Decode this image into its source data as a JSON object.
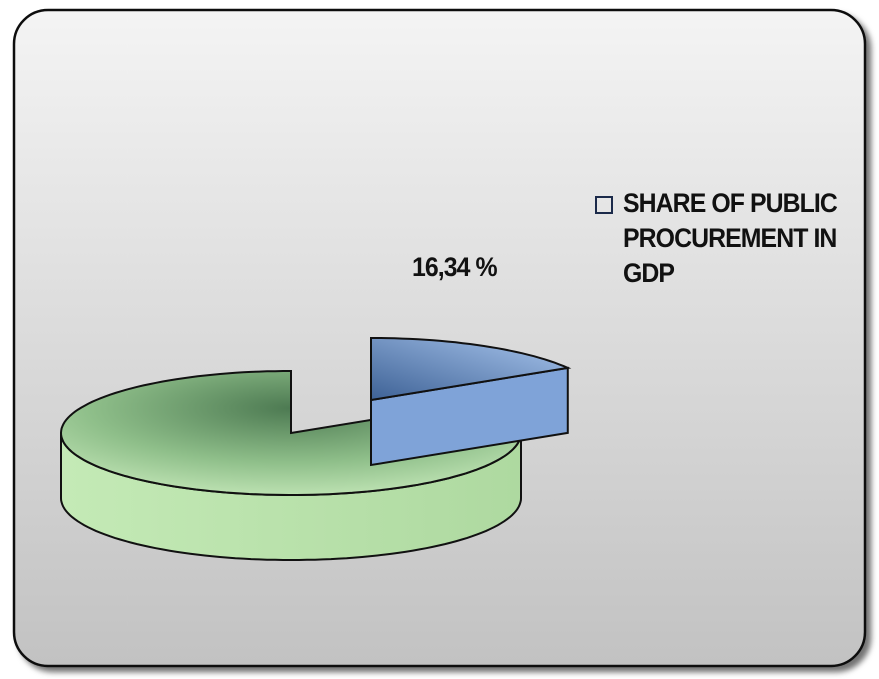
{
  "chart_data": {
    "type": "pie",
    "style": "3d-exploded",
    "title": "",
    "slices": [
      {
        "label": "SHARE OF PUBLIC PROCUREMENT IN GDP",
        "value": 16.34,
        "display": "16,34 %",
        "color": "#8fb2e4"
      },
      {
        "label": "",
        "value": 83.66,
        "display": "",
        "color": "#bfe4b0"
      }
    ],
    "legend": {
      "placement": "right",
      "entries": [
        "SHARE OF PUBLIC PROCUREMENT IN GDP"
      ]
    }
  },
  "colors": {
    "background_top": "#f4f4f4",
    "background_bottom": "#c2c2c2",
    "frame_border": "#111111",
    "slice_public": "#8fb2e4",
    "slice_public_dark": "#3e6296",
    "slice_rest": "#bfe4b0",
    "slice_rest_dark": "#4d7a52"
  }
}
